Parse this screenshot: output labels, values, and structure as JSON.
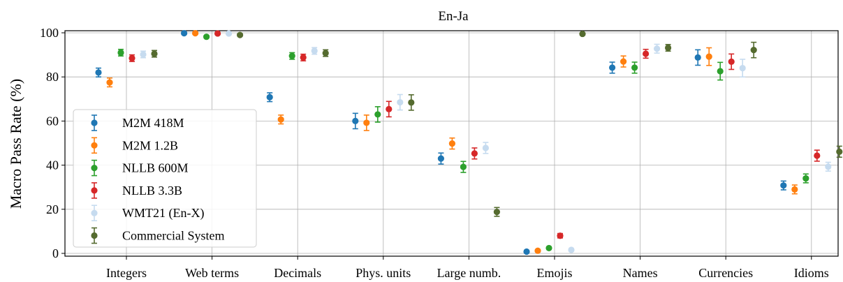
{
  "chart_data": {
    "type": "scatter",
    "title": "En-Ja",
    "xlabel": "",
    "ylabel": "Macro Pass Rate (%)",
    "ylim": [
      0,
      100
    ],
    "yticks": [
      0,
      20,
      40,
      60,
      80,
      100
    ],
    "grid": true,
    "legend_position": "lower-left",
    "categories": [
      "Integers",
      "Web terms",
      "Decimals",
      "Phys. units",
      "Large numb.",
      "Emojis",
      "Names",
      "Currencies",
      "Idioms"
    ],
    "series": [
      {
        "name": "M2M 418M",
        "color": "#1f77b4",
        "values": [
          82,
          99.8,
          70.8,
          60,
          43,
          0.8,
          84.2,
          88.8,
          30.8
        ],
        "errors": [
          2.0,
          0.5,
          2.0,
          3.5,
          2.5,
          0.5,
          2.5,
          3.5,
          2.0
        ]
      },
      {
        "name": "M2M 1.2B",
        "color": "#ff7f0e",
        "values": [
          77.5,
          99.8,
          60.7,
          59.2,
          49.8,
          1.2,
          87,
          89.2,
          29
        ],
        "errors": [
          2.0,
          0.5,
          2.0,
          3.5,
          2.5,
          0.5,
          2.5,
          4.0,
          2.0
        ]
      },
      {
        "name": "NLLB 600M",
        "color": "#2ca02c",
        "values": [
          91,
          98.2,
          89.5,
          63,
          39.2,
          2.4,
          84.2,
          82.6,
          34
        ],
        "errors": [
          1.5,
          0.5,
          1.5,
          3.5,
          2.5,
          0.5,
          2.5,
          4.0,
          2.0
        ]
      },
      {
        "name": "NLLB 3.3B",
        "color": "#d62728",
        "values": [
          88.5,
          99.7,
          88.8,
          65.4,
          45.3,
          8,
          90.5,
          86.9,
          44.3
        ],
        "errors": [
          1.5,
          0.5,
          1.5,
          3.5,
          2.5,
          1.0,
          2.0,
          3.5,
          2.5
        ]
      },
      {
        "name": "WMT21 (En-X)",
        "color": "#c6dbef",
        "values": [
          90.2,
          99.7,
          91.8,
          68.5,
          47.8,
          1.6,
          92.8,
          84,
          39.3
        ],
        "errors": [
          1.5,
          0.5,
          1.5,
          3.5,
          2.5,
          0.5,
          2.0,
          4.0,
          2.0
        ]
      },
      {
        "name": "Commercial System",
        "color": "#556b2f",
        "values": [
          90.5,
          99,
          90.8,
          68.4,
          18.8,
          99.5,
          93.2,
          92.2,
          46.1
        ],
        "errors": [
          1.5,
          0.5,
          1.5,
          3.5,
          2.0,
          0.5,
          1.5,
          3.5,
          2.5
        ]
      }
    ]
  }
}
